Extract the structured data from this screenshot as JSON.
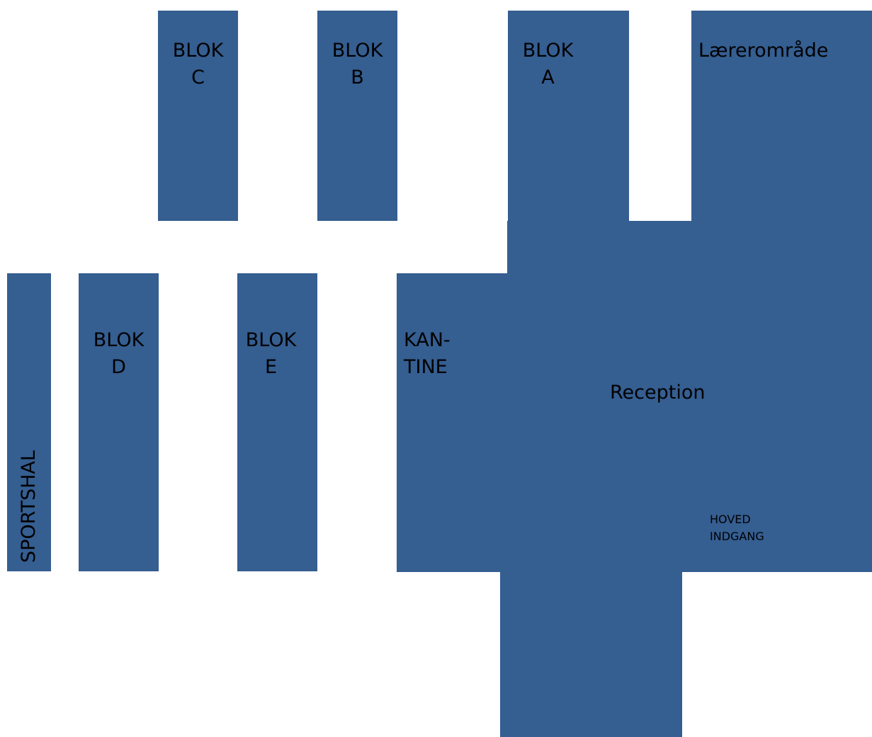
{
  "colors": {
    "building": "#355E91",
    "background": "#FFFFFF",
    "text": "#000000"
  },
  "map": {
    "blok_c": [
      "BLOK",
      "C"
    ],
    "blok_b": [
      "BLOK",
      "B"
    ],
    "blok_a": [
      "BLOK",
      "A"
    ],
    "laererområde": "Lærerområde",
    "sportshal": "SPORTSHAL",
    "blok_d": [
      "BLOK",
      "D"
    ],
    "blok_e": [
      "BLOK",
      "E"
    ],
    "kantine": [
      "KAN-",
      "TINE"
    ],
    "reception": "Reception",
    "hovedindgang": [
      "HOVED",
      "INDGANG"
    ]
  }
}
